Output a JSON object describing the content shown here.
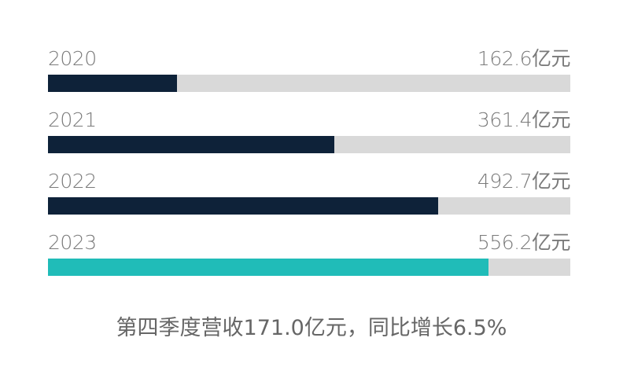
{
  "chart_data": {
    "type": "bar",
    "orientation": "horizontal",
    "categories": [
      "2020",
      "2021",
      "2022",
      "2023"
    ],
    "values": [
      162.6,
      361.4,
      492.7,
      556.2
    ],
    "value_labels": [
      "162.6亿元",
      "361.4亿元",
      "492.7亿元",
      "556.2亿元"
    ],
    "unit": "亿元",
    "xlim": [
      0,
      660
    ],
    "grid": false,
    "colors": {
      "default": "#0e2239",
      "highlight": "#20bcb8",
      "track": "#d9d9d9"
    },
    "highlight_index": 3,
    "caption": "第四季度营收171.0亿元，同比增长6.5%"
  }
}
